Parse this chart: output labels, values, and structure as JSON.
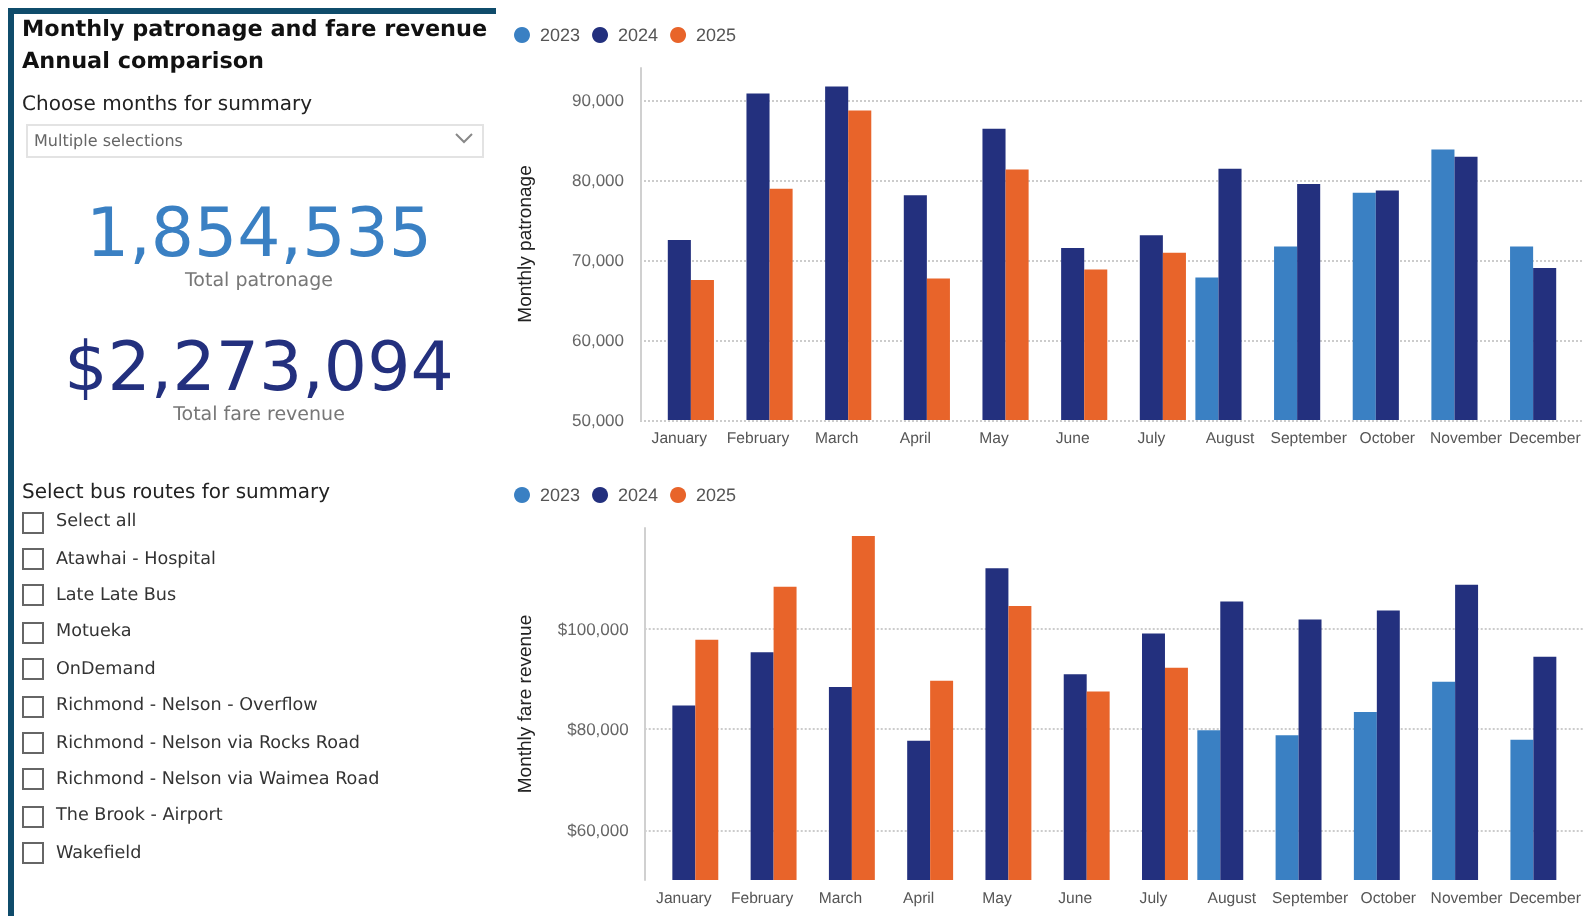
{
  "chart_data": [
    {
      "type": "other",
      "title": "Monthly patronage and fare revenue",
      "subtitle": "Annual comparison",
      "annotations": [
        "Choose months for summary",
        "Multiple selections",
        "1,854,535",
        "Total patronage",
        "$2,273,094",
        "Total fare revenue",
        "Select bus routes for summary",
        "Select all",
        "Atawhai - Hospital",
        "Late Late Bus",
        "Motueka",
        "OnDemand",
        "Richmond - Nelson - Overflow",
        "Richmond - Nelson via Rocks Road",
        "Richmond - Nelson via Waimea Road",
        "The Brook - Airport",
        "Wakefield"
      ]
    },
    {
      "type": "bar",
      "ylabel": "Monthly patronage",
      "categories": [
        "January",
        "February",
        "March",
        "April",
        "May",
        "June",
        "July",
        "August",
        "September",
        "October",
        "November",
        "December"
      ],
      "series": [
        {
          "name": "2023",
          "color": "#3a80c3",
          "values": [
            null,
            null,
            null,
            null,
            null,
            null,
            null,
            67800,
            71700,
            78400,
            83800,
            71700
          ]
        },
        {
          "name": "2024",
          "color": "#23307e",
          "values": [
            72500,
            90800,
            91700,
            78100,
            86400,
            71500,
            73100,
            81400,
            79500,
            78700,
            82900,
            69000
          ]
        },
        {
          "name": "2025",
          "color": "#e8642a",
          "values": [
            67500,
            78900,
            88700,
            67700,
            81300,
            68800,
            70900,
            null,
            null,
            null,
            null,
            null
          ]
        }
      ],
      "ylim": [
        50000,
        94000
      ],
      "yticks": [
        {
          "value": 50000,
          "label": "50,000"
        },
        {
          "value": 60000,
          "label": "60,000"
        },
        {
          "value": 70000,
          "label": "70,000"
        },
        {
          "value": 80000,
          "label": "80,000"
        },
        {
          "value": 90000,
          "label": "90,000"
        }
      ],
      "grid": "y",
      "legend": "top left"
    },
    {
      "type": "bar",
      "ylabel": "Monthly fare revenue",
      "categories": [
        "January",
        "February",
        "March",
        "April",
        "May",
        "June",
        "July",
        "August",
        "September",
        "October",
        "November",
        "December"
      ],
      "series": [
        {
          "name": "2023",
          "color": "#3a80c3",
          "values": [
            null,
            null,
            null,
            null,
            null,
            null,
            null,
            79800,
            78800,
            83400,
            89400,
            77900
          ]
        },
        {
          "name": "2024",
          "color": "#23307e",
          "values": [
            84700,
            95300,
            88400,
            77700,
            112000,
            90900,
            99000,
            105400,
            101800,
            103600,
            108700,
            94400
          ]
        },
        {
          "name": "2025",
          "color": "#e8642a",
          "values": [
            97800,
            108300,
            118400,
            89600,
            104500,
            87500,
            92200,
            null,
            null,
            null,
            null,
            null
          ]
        }
      ],
      "ylim": [
        50000,
        120000
      ],
      "yticks": [
        {
          "value": 60000,
          "label": "$60,000"
        },
        {
          "value": 80000,
          "label": "$80,000"
        },
        {
          "value": 100000,
          "label": "$100,000"
        }
      ],
      "grid": "y",
      "legend": "top left"
    }
  ]
}
